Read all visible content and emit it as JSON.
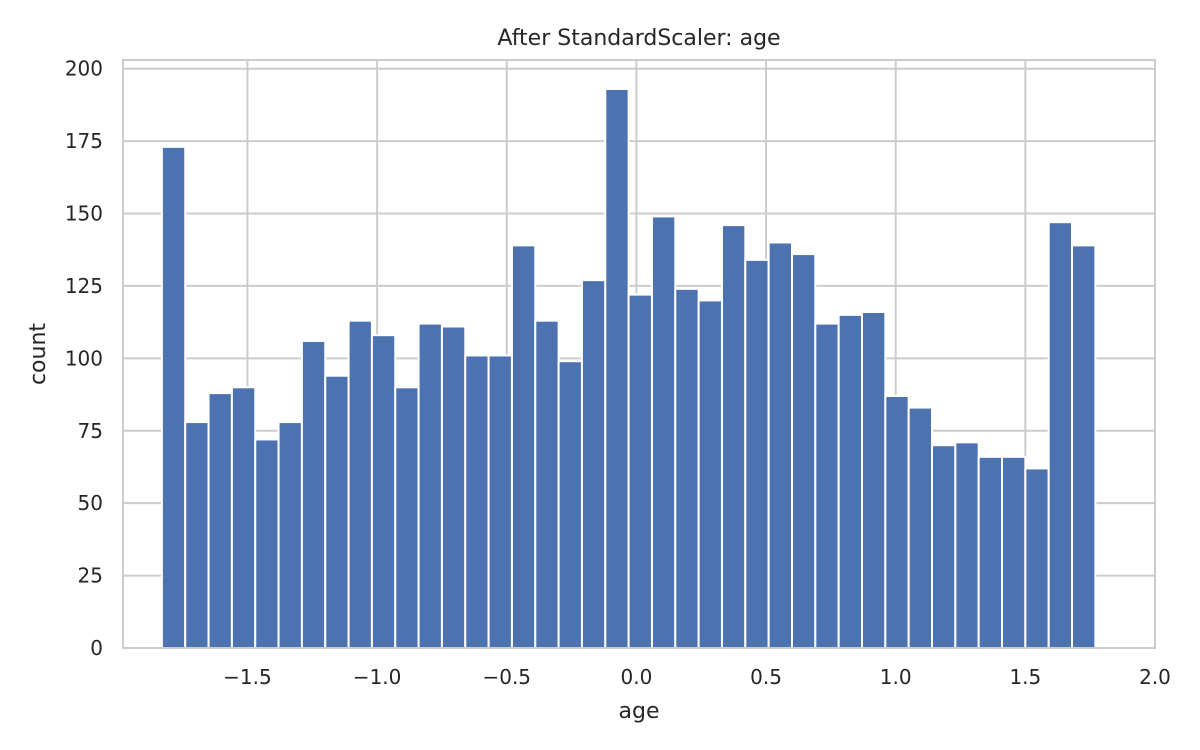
{
  "chart_data": {
    "type": "bar",
    "title": "After StandardScaler: age",
    "xlabel": "age",
    "ylabel": "count",
    "xlim": [
      -1.98,
      2.0
    ],
    "ylim": [
      0,
      203
    ],
    "xticks": [
      -1.5,
      -1.0,
      -0.5,
      0.0,
      0.5,
      1.0,
      1.5,
      2.0
    ],
    "xtick_labels": [
      "−1.5",
      "−1.0",
      "−0.5",
      "0.0",
      "0.5",
      "1.0",
      "1.5",
      "2.0"
    ],
    "yticks": [
      0,
      25,
      50,
      75,
      100,
      125,
      150,
      175,
      200
    ],
    "ytick_labels": [
      "0",
      "25",
      "50",
      "75",
      "100",
      "125",
      "150",
      "175",
      "200"
    ],
    "grid": true,
    "bar_color": "#4c72b0",
    "bin_edges": [
      -1.83,
      -1.74,
      -1.65,
      -1.56,
      -1.47,
      -1.38,
      -1.29,
      -1.2,
      -1.11,
      -1.02,
      -0.93,
      -0.84,
      -0.75,
      -0.66,
      -0.57,
      -0.48,
      -0.39,
      -0.3,
      -0.21,
      -0.12,
      -0.03,
      0.06,
      0.15,
      0.24,
      0.33,
      0.42,
      0.51,
      0.6,
      0.69,
      0.78,
      0.87,
      0.96,
      1.05,
      1.14,
      1.23,
      1.32,
      1.41,
      1.5,
      1.59,
      1.68,
      1.77
    ],
    "values": [
      173,
      78,
      88,
      90,
      72,
      78,
      106,
      94,
      113,
      108,
      90,
      112,
      111,
      101,
      101,
      139,
      113,
      99,
      127,
      193,
      122,
      149,
      124,
      120,
      146,
      134,
      140,
      136,
      112,
      115,
      116,
      87,
      83,
      70,
      71,
      66,
      66,
      62,
      147,
      139
    ]
  }
}
